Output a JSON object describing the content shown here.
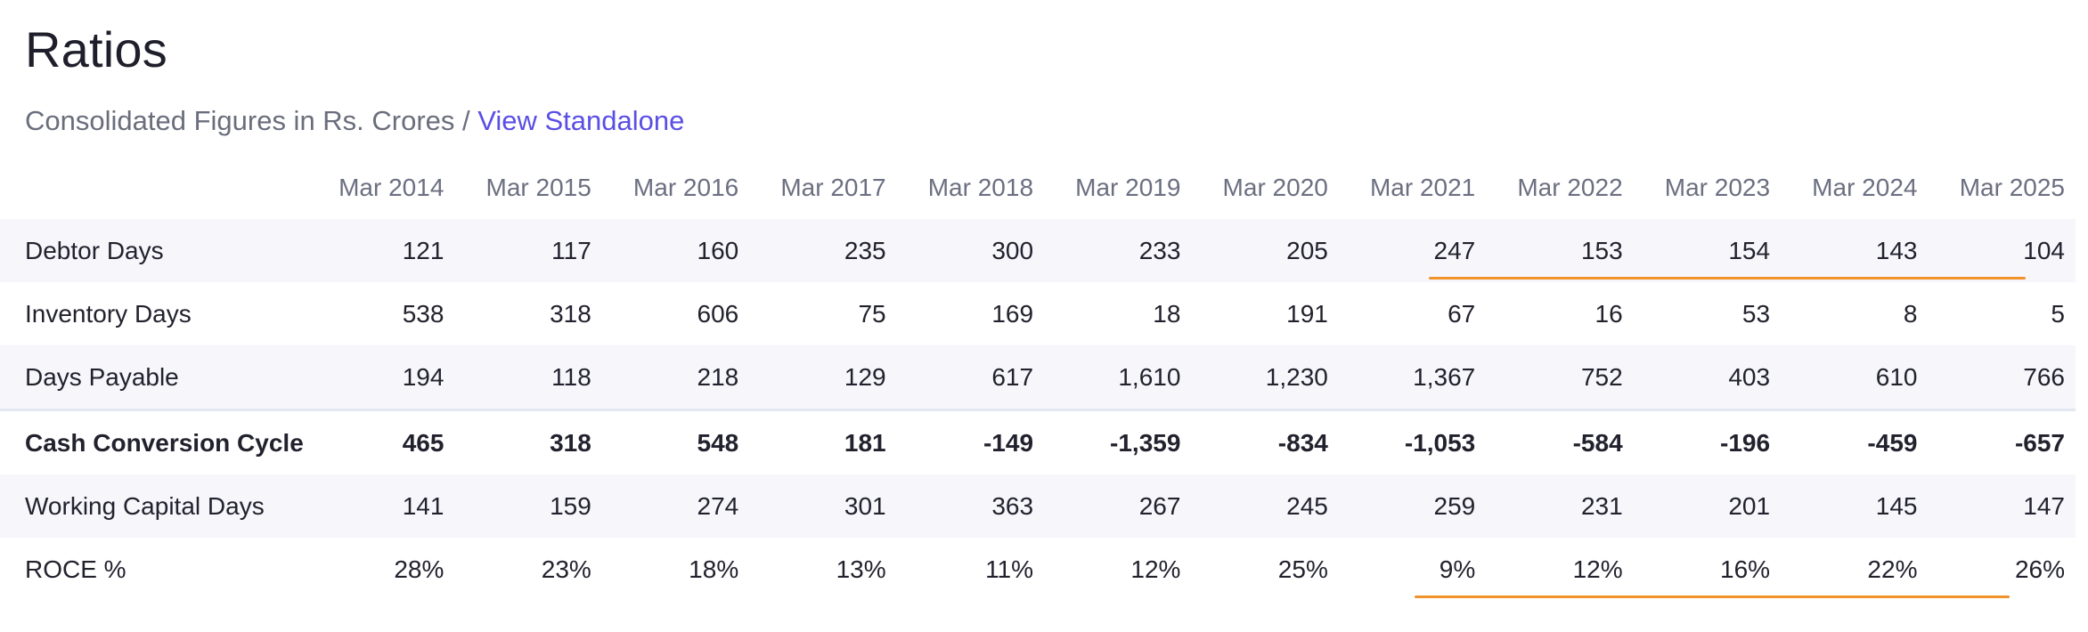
{
  "title": "Ratios",
  "subtitle": {
    "text": "Consolidated Figures in Rs. Crores / ",
    "link": "View Standalone"
  },
  "columns": [
    "Mar 2014",
    "Mar 2015",
    "Mar 2016",
    "Mar 2017",
    "Mar 2018",
    "Mar 2019",
    "Mar 2020",
    "Mar 2021",
    "Mar 2022",
    "Mar 2023",
    "Mar 2024",
    "Mar 2025"
  ],
  "rows": [
    {
      "label": "Debtor Days",
      "values": [
        "121",
        "117",
        "160",
        "235",
        "300",
        "233",
        "205",
        "247",
        "153",
        "154",
        "143",
        "104"
      ]
    },
    {
      "label": "Inventory Days",
      "values": [
        "538",
        "318",
        "606",
        "75",
        "169",
        "18",
        "191",
        "67",
        "16",
        "53",
        "8",
        "5"
      ]
    },
    {
      "label": "Days Payable",
      "values": [
        "194",
        "118",
        "218",
        "129",
        "617",
        "1,610",
        "1,230",
        "1,367",
        "752",
        "403",
        "610",
        "766"
      ]
    },
    {
      "label": "Cash Conversion Cycle",
      "values": [
        "465",
        "318",
        "548",
        "181",
        "-149",
        "-1,359",
        "-834",
        "-1,053",
        "-584",
        "-196",
        "-459",
        "-657"
      ]
    },
    {
      "label": "Working Capital Days",
      "values": [
        "141",
        "159",
        "274",
        "301",
        "363",
        "267",
        "245",
        "259",
        "231",
        "201",
        "145",
        "147"
      ]
    },
    {
      "label": "ROCE %",
      "values": [
        "28%",
        "23%",
        "18%",
        "13%",
        "11%",
        "12%",
        "25%",
        "9%",
        "12%",
        "16%",
        "22%",
        "26%"
      ]
    }
  ],
  "colors": {
    "accent_underline": "#f0932b",
    "link": "#5a4fe4",
    "row_shade": "#f6f6fb"
  }
}
